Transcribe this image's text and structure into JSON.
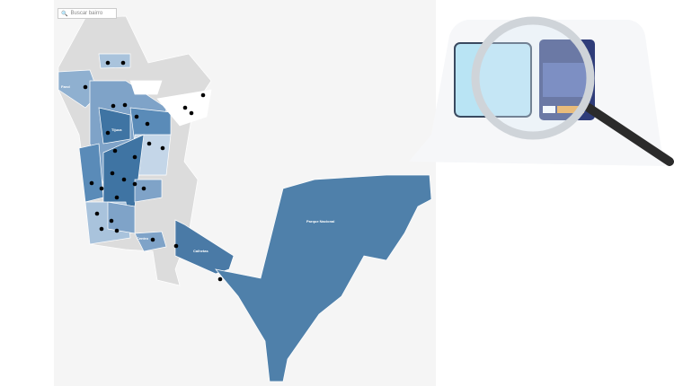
{
  "search": {
    "placeholder": "Buscar bairro",
    "icon": "search-icon"
  },
  "map": {
    "labels": [
      "Parque Nacional",
      "Calhetas",
      "Farol",
      "Tijuca",
      "Centro"
    ],
    "colors": {
      "dark": "#3f74a3",
      "mid": "#5a8bb8",
      "light": "#a9c3dc",
      "pale": "#d6e2ee",
      "gray": "#dcdcdc",
      "big": "#4f80aa"
    }
  },
  "illustration": {
    "icon": "magnifier-over-device-icon"
  }
}
